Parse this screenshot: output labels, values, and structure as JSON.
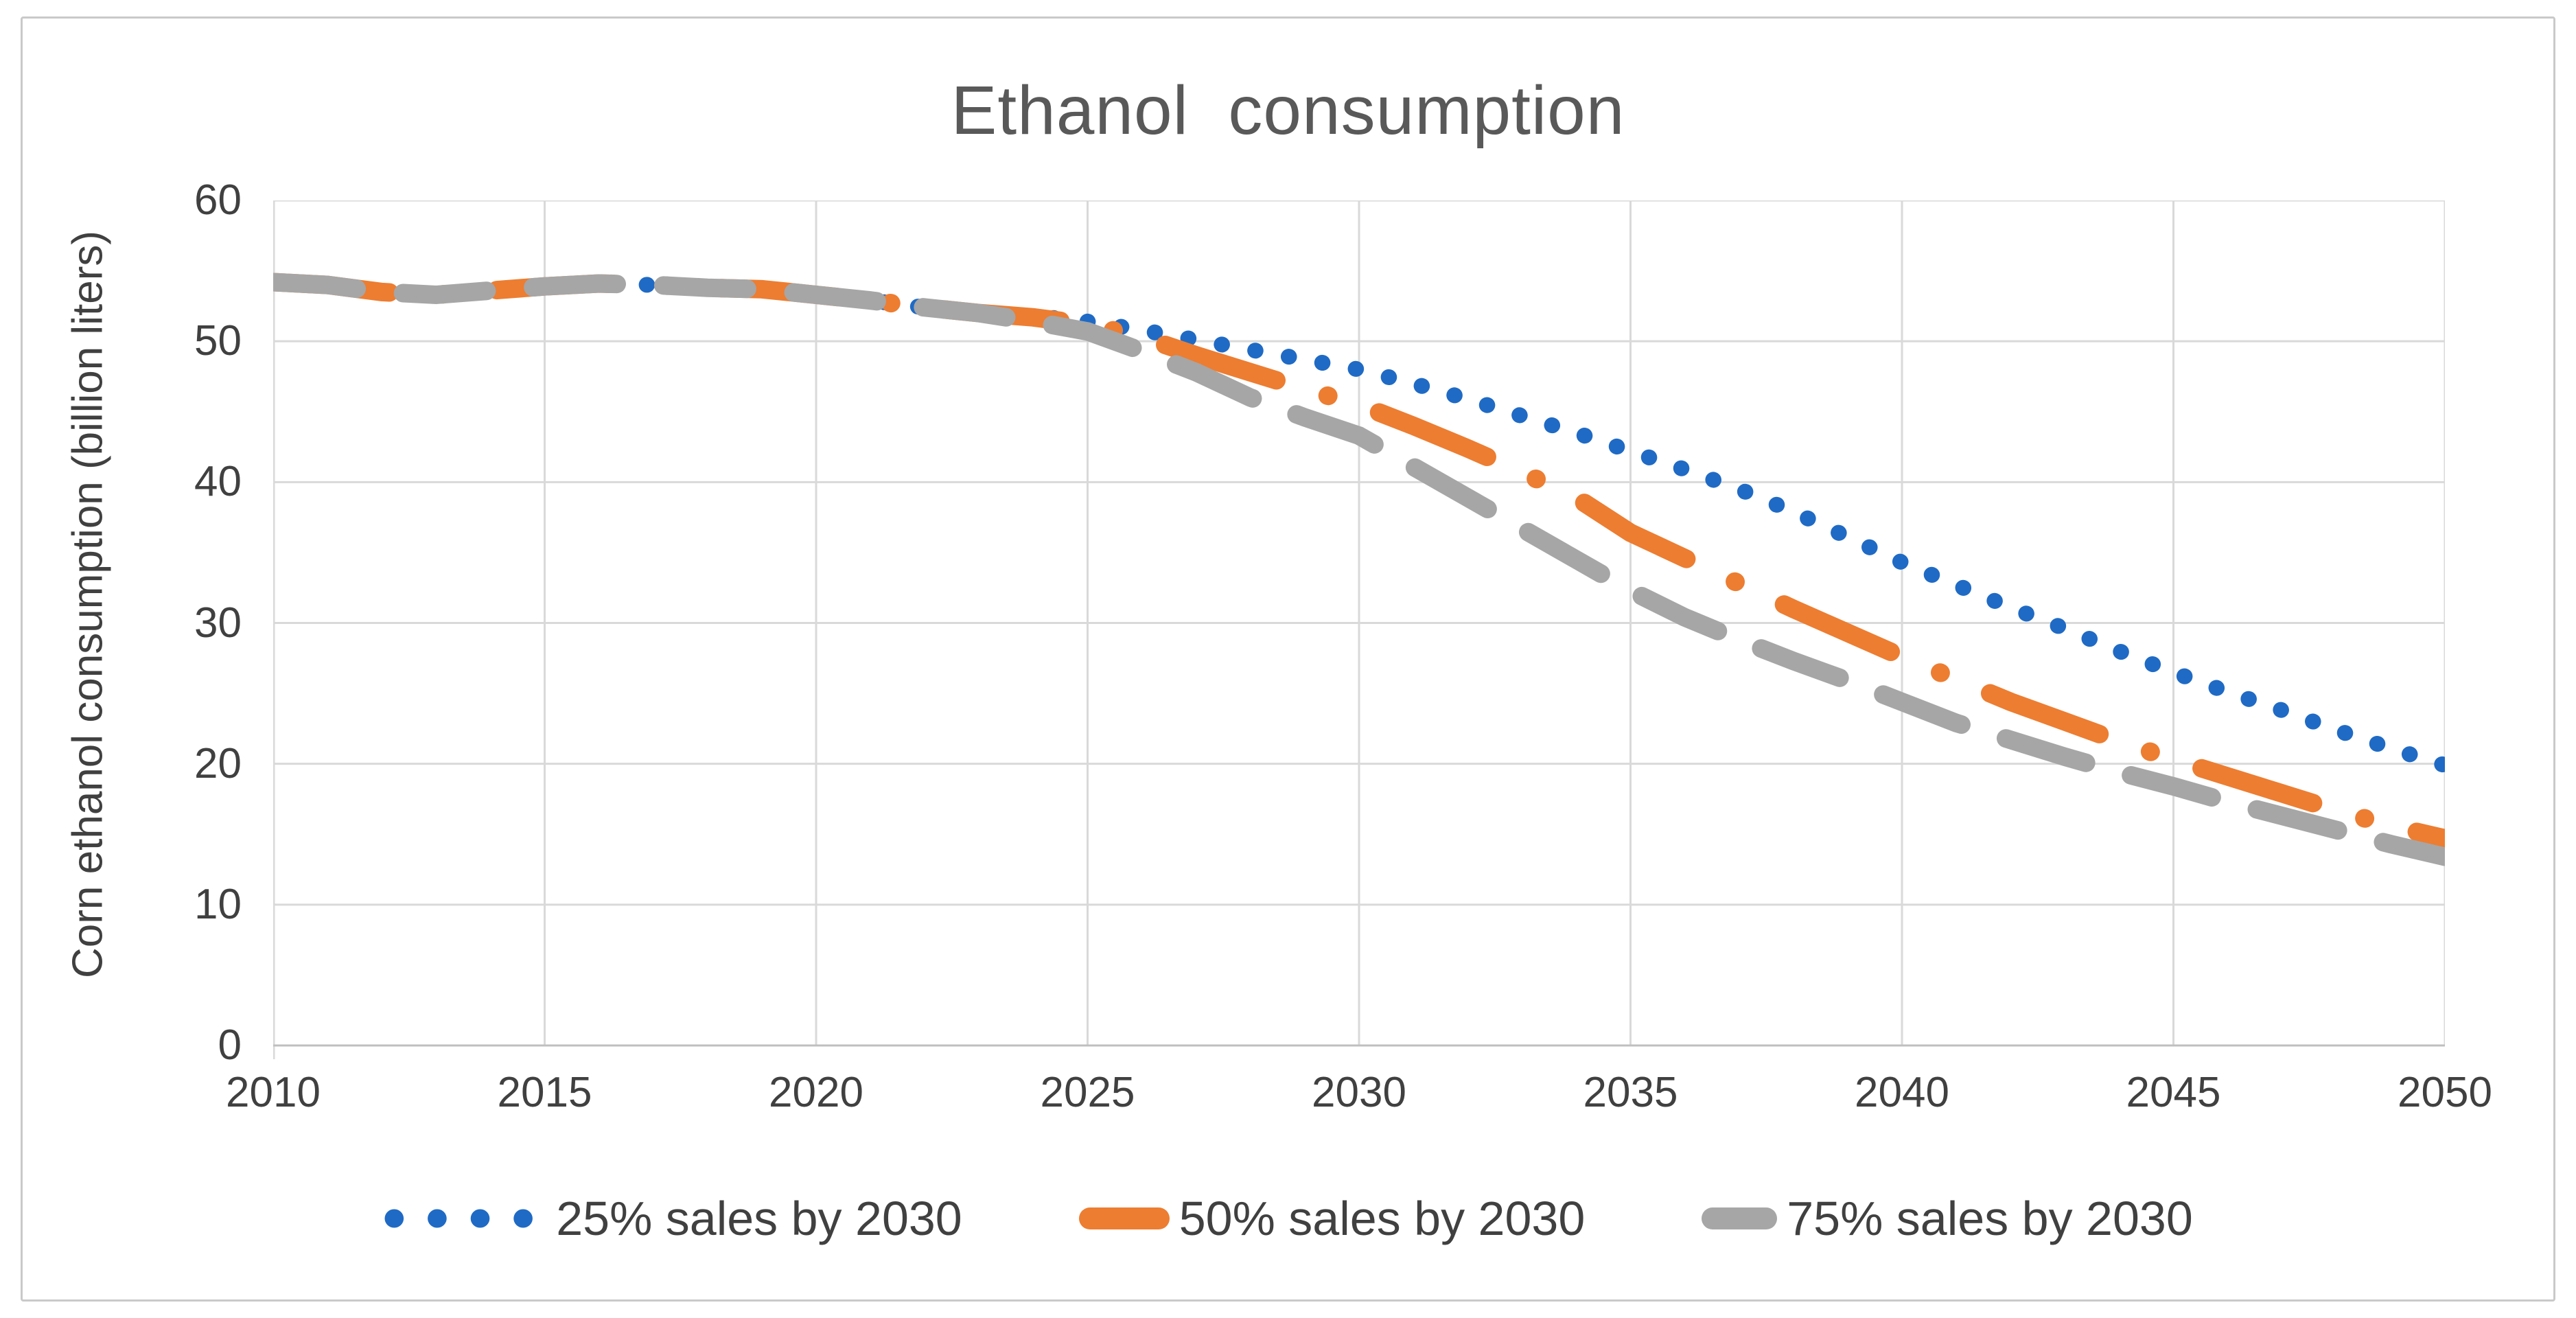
{
  "window": {
    "background_color": "#ffffff",
    "border_color": "#c9c9c9"
  },
  "chart_data": {
    "type": "line",
    "title": "Ethanol  consumption",
    "xlabel": "",
    "ylabel": "Corn ethanol consumption (billion liters)",
    "xlim": [
      2010,
      2050
    ],
    "ylim": [
      0,
      60
    ],
    "grid": true,
    "legend_position": "bottom",
    "x_ticks": [
      2010,
      2015,
      2020,
      2025,
      2030,
      2035,
      2040,
      2045,
      2050
    ],
    "y_ticks": [
      0,
      10,
      20,
      30,
      40,
      50,
      60
    ],
    "text_color": "#404040",
    "title_color": "#595959",
    "gridline_color": "#d9d9d9",
    "x": [
      2010,
      2011,
      2012,
      2013,
      2014,
      2015,
      2016,
      2017,
      2018,
      2019,
      2020,
      2021,
      2022,
      2023,
      2024,
      2025,
      2026,
      2027,
      2028,
      2029,
      2030,
      2031,
      2032,
      2033,
      2034,
      2035,
      2036,
      2037,
      2038,
      2039,
      2040,
      2041,
      2042,
      2043,
      2044,
      2045,
      2046,
      2047,
      2048,
      2049,
      2050
    ],
    "series": [
      {
        "name": "25% sales by 2030",
        "color": "#1f6ac5",
        "style": "dotted",
        "values": [
          54.2,
          54.0,
          53.5,
          53.3,
          53.6,
          53.9,
          54.1,
          54.0,
          53.8,
          53.7,
          53.3,
          52.9,
          52.4,
          52.0,
          51.8,
          51.4,
          50.8,
          50.1,
          49.4,
          48.7,
          48.0,
          47.0,
          45.9,
          44.7,
          43.5,
          42.2,
          40.9,
          39.5,
          37.9,
          36.1,
          34.3,
          32.7,
          31.1,
          29.6,
          28.0,
          26.5,
          25.1,
          23.8,
          22.4,
          21.1,
          19.9
        ]
      },
      {
        "name": "50% sales by 2030",
        "color": "#ed7d31",
        "style": "dash-dot",
        "values": [
          54.2,
          54.0,
          53.5,
          53.3,
          53.6,
          53.9,
          54.1,
          54.0,
          53.8,
          53.7,
          53.3,
          52.9,
          52.4,
          52.0,
          51.7,
          51.2,
          50.3,
          49.0,
          47.8,
          46.6,
          45.5,
          44.0,
          42.4,
          40.7,
          38.9,
          36.4,
          34.6,
          32.8,
          31.0,
          29.3,
          27.6,
          26.0,
          24.4,
          23.0,
          21.6,
          20.3,
          19.1,
          17.9,
          16.7,
          15.6,
          14.7
        ]
      },
      {
        "name": "75% sales by 2030",
        "color": "#a6a6a6",
        "style": "dashed",
        "values": [
          54.2,
          54.0,
          53.5,
          53.3,
          53.6,
          53.9,
          54.1,
          54.0,
          53.8,
          53.7,
          53.3,
          52.9,
          52.4,
          52.0,
          51.4,
          50.7,
          49.3,
          47.8,
          46.0,
          44.6,
          43.3,
          41.1,
          38.9,
          36.7,
          34.5,
          32.3,
          30.4,
          28.8,
          27.3,
          25.9,
          24.4,
          22.9,
          21.7,
          20.5,
          19.4,
          18.4,
          17.3,
          16.3,
          15.3,
          14.3,
          13.4
        ]
      }
    ]
  }
}
